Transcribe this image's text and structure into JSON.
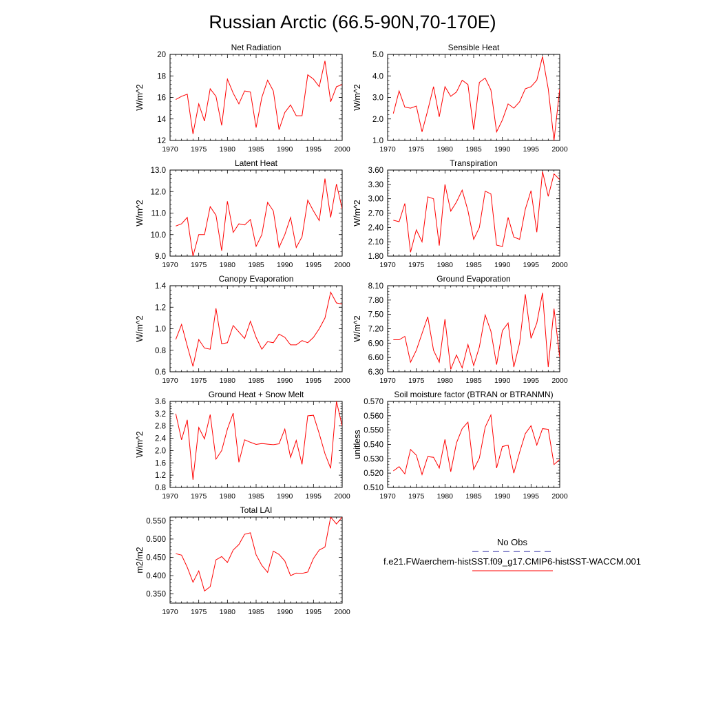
{
  "title": "Russian Arctic (66.5-90N,70-170E)",
  "legend": {
    "obs_label": "No Obs",
    "obs_color": "#1f1f9f",
    "case_label": "f.e21.FWaerchem-histSST.f09_g17.CMIP6-histSST-WACCM.001",
    "case_color": "#ff0000"
  },
  "chart_data": [
    {
      "type": "line",
      "title": "Net Radiation",
      "ylabel": "W/m^2",
      "xlim": [
        1970,
        2000
      ],
      "ylim": [
        12,
        20
      ],
      "xticks": [
        1970,
        1975,
        1980,
        1985,
        1990,
        1995,
        2000
      ],
      "yticks": [
        "12",
        "14",
        "16",
        "18",
        "20"
      ],
      "x": [
        1971,
        1972,
        1973,
        1974,
        1975,
        1976,
        1977,
        1978,
        1979,
        1980,
        1981,
        1982,
        1983,
        1984,
        1985,
        1986,
        1987,
        1988,
        1989,
        1990,
        1991,
        1992,
        1993,
        1994,
        1995,
        1996,
        1997,
        1998,
        1999,
        2000
      ],
      "series": [
        {
          "values": [
            15.8,
            16.1,
            16.3,
            12.6,
            15.4,
            13.8,
            16.8,
            16.1,
            13.4,
            17.7,
            16.4,
            15.4,
            16.6,
            16.5,
            13.2,
            16.0,
            17.6,
            16.6,
            13.0,
            14.6,
            15.3,
            14.3,
            14.3,
            18.1,
            17.7,
            17.0,
            19.4,
            15.6,
            17.0,
            17.2
          ]
        }
      ]
    },
    {
      "type": "line",
      "title": "Sensible Heat",
      "ylabel": "W/m^2",
      "xlim": [
        1970,
        2000
      ],
      "ylim": [
        1.0,
        5.0
      ],
      "xticks": [
        1970,
        1975,
        1980,
        1985,
        1990,
        1995,
        2000
      ],
      "yticks": [
        "1.0",
        "2.0",
        "3.0",
        "4.0",
        "5.0"
      ],
      "x": [
        1971,
        1972,
        1973,
        1974,
        1975,
        1976,
        1977,
        1978,
        1979,
        1980,
        1981,
        1982,
        1983,
        1984,
        1985,
        1986,
        1987,
        1988,
        1989,
        1990,
        1991,
        1992,
        1993,
        1994,
        1995,
        1996,
        1997,
        1998,
        1999,
        2000
      ],
      "series": [
        {
          "values": [
            2.25,
            3.3,
            2.55,
            2.5,
            2.6,
            1.4,
            2.4,
            3.5,
            2.1,
            3.5,
            3.05,
            3.25,
            3.8,
            3.6,
            1.5,
            3.7,
            3.9,
            3.35,
            1.4,
            1.95,
            2.7,
            2.5,
            2.8,
            3.4,
            3.5,
            3.8,
            4.9,
            3.4,
            1.0,
            3.4
          ]
        }
      ]
    },
    {
      "type": "line",
      "title": "Latent Heat",
      "ylabel": "W/m^2",
      "xlim": [
        1970,
        2000
      ],
      "ylim": [
        9.0,
        13.0
      ],
      "xticks": [
        1970,
        1975,
        1980,
        1985,
        1990,
        1995,
        2000
      ],
      "yticks": [
        "9.0",
        "10.0",
        "11.0",
        "12.0",
        "13.0"
      ],
      "x": [
        1971,
        1972,
        1973,
        1974,
        1975,
        1976,
        1977,
        1978,
        1979,
        1980,
        1981,
        1982,
        1983,
        1984,
        1985,
        1986,
        1987,
        1988,
        1989,
        1990,
        1991,
        1992,
        1993,
        1994,
        1995,
        1996,
        1997,
        1998,
        1999,
        2000
      ],
      "series": [
        {
          "values": [
            10.4,
            10.5,
            10.8,
            9.0,
            10.0,
            10.0,
            11.3,
            10.9,
            9.25,
            11.55,
            10.1,
            10.5,
            10.45,
            10.7,
            9.45,
            10.0,
            11.5,
            11.1,
            9.4,
            10.0,
            10.8,
            9.4,
            9.9,
            11.6,
            11.1,
            10.65,
            12.6,
            10.8,
            12.35,
            11.2
          ]
        }
      ]
    },
    {
      "type": "line",
      "title": "Transpiration",
      "ylabel": "W/m^2",
      "xlim": [
        1970,
        2000
      ],
      "ylim": [
        1.8,
        3.6
      ],
      "xticks": [
        1970,
        1975,
        1980,
        1985,
        1990,
        1995,
        2000
      ],
      "yticks": [
        "1.80",
        "2.10",
        "2.40",
        "2.70",
        "3.00",
        "3.30",
        "3.60"
      ],
      "x": [
        1971,
        1972,
        1973,
        1974,
        1975,
        1976,
        1977,
        1978,
        1979,
        1980,
        1981,
        1982,
        1983,
        1984,
        1985,
        1986,
        1987,
        1988,
        1989,
        1990,
        1991,
        1992,
        1993,
        1994,
        1995,
        1996,
        1997,
        1998,
        1999,
        2000
      ],
      "series": [
        {
          "values": [
            2.55,
            2.52,
            2.9,
            1.88,
            2.35,
            2.1,
            3.04,
            3.0,
            2.02,
            3.3,
            2.74,
            2.93,
            3.18,
            2.75,
            2.15,
            2.4,
            3.16,
            3.1,
            2.03,
            2.0,
            2.61,
            2.2,
            2.15,
            2.78,
            3.17,
            2.3,
            3.57,
            3.05,
            3.52,
            3.4
          ]
        }
      ]
    },
    {
      "type": "line",
      "title": "Canopy Evaporation",
      "ylabel": "W/m^2",
      "xlim": [
        1970,
        2000
      ],
      "ylim": [
        0.6,
        1.4
      ],
      "xticks": [
        1970,
        1975,
        1980,
        1985,
        1990,
        1995,
        2000
      ],
      "yticks": [
        "0.6",
        "0.8",
        "1.0",
        "1.2",
        "1.4"
      ],
      "x": [
        1971,
        1972,
        1973,
        1974,
        1975,
        1976,
        1977,
        1978,
        1979,
        1980,
        1981,
        1982,
        1983,
        1984,
        1985,
        1986,
        1987,
        1988,
        1989,
        1990,
        1991,
        1992,
        1993,
        1994,
        1995,
        1996,
        1997,
        1998,
        1999,
        2000
      ],
      "series": [
        {
          "values": [
            0.9,
            1.04,
            0.84,
            0.65,
            0.9,
            0.82,
            0.81,
            1.19,
            0.86,
            0.87,
            1.03,
            0.97,
            0.91,
            1.07,
            0.92,
            0.81,
            0.88,
            0.87,
            0.95,
            0.92,
            0.85,
            0.85,
            0.89,
            0.87,
            0.92,
            1.0,
            1.1,
            1.34,
            1.24,
            1.23
          ]
        }
      ]
    },
    {
      "type": "line",
      "title": "Ground Evaporation",
      "ylabel": "W/m^2",
      "xlim": [
        1970,
        2000
      ],
      "ylim": [
        6.3,
        8.1
      ],
      "xticks": [
        1970,
        1975,
        1980,
        1985,
        1990,
        1995,
        2000
      ],
      "yticks": [
        "6.30",
        "6.60",
        "6.90",
        "7.20",
        "7.50",
        "7.80",
        "8.10"
      ],
      "x": [
        1971,
        1972,
        1973,
        1974,
        1975,
        1976,
        1977,
        1978,
        1979,
        1980,
        1981,
        1982,
        1983,
        1984,
        1985,
        1986,
        1987,
        1988,
        1989,
        1990,
        1991,
        1992,
        1993,
        1994,
        1995,
        1996,
        1997,
        1998,
        1999,
        2000
      ],
      "series": [
        {
          "values": [
            6.97,
            6.97,
            7.04,
            6.5,
            6.75,
            7.1,
            7.45,
            6.75,
            6.5,
            7.4,
            6.35,
            6.65,
            6.38,
            6.87,
            6.43,
            6.82,
            7.49,
            7.15,
            6.45,
            7.16,
            7.32,
            6.4,
            6.9,
            7.92,
            7.0,
            7.32,
            7.95,
            6.4,
            7.62,
            6.6
          ]
        }
      ]
    },
    {
      "type": "line",
      "title": "Ground Heat + Snow Melt",
      "ylabel": "W/m^2",
      "xlim": [
        1970,
        2000
      ],
      "ylim": [
        0.8,
        3.6
      ],
      "xticks": [
        1970,
        1975,
        1980,
        1985,
        1990,
        1995,
        2000
      ],
      "yticks": [
        "0.8",
        "1.2",
        "1.6",
        "2.0",
        "2.4",
        "2.8",
        "3.2",
        "3.6"
      ],
      "x": [
        1971,
        1972,
        1973,
        1974,
        1975,
        1976,
        1977,
        1978,
        1979,
        1980,
        1981,
        1982,
        1983,
        1984,
        1985,
        1986,
        1987,
        1988,
        1989,
        1990,
        1991,
        1992,
        1993,
        1994,
        1995,
        1996,
        1997,
        1998,
        1999,
        2000
      ],
      "series": [
        {
          "values": [
            3.2,
            2.35,
            3.0,
            1.05,
            2.75,
            2.38,
            3.17,
            1.72,
            2.0,
            2.7,
            3.22,
            1.62,
            2.35,
            2.27,
            2.2,
            2.23,
            2.21,
            2.19,
            2.22,
            2.7,
            1.78,
            2.33,
            1.55,
            3.13,
            3.15,
            2.55,
            1.9,
            1.42,
            3.6,
            2.8
          ]
        }
      ]
    },
    {
      "type": "line",
      "title": "Soil moisture factor (BTRAN or BTRANMN)",
      "ylabel": "unitless",
      "xlim": [
        1970,
        2000
      ],
      "ylim": [
        0.51,
        0.57
      ],
      "xticks": [
        1970,
        1975,
        1980,
        1985,
        1990,
        1995,
        2000
      ],
      "yticks": [
        "0.510",
        "0.520",
        "0.530",
        "0.540",
        "0.550",
        "0.560",
        "0.570"
      ],
      "x": [
        1971,
        1972,
        1973,
        1974,
        1975,
        1976,
        1977,
        1978,
        1979,
        1980,
        1981,
        1982,
        1983,
        1984,
        1985,
        1986,
        1987,
        1988,
        1989,
        1990,
        1991,
        1992,
        1993,
        1994,
        1995,
        1996,
        1997,
        1998,
        1999,
        2000
      ],
      "series": [
        {
          "values": [
            0.5215,
            0.5245,
            0.5195,
            0.5365,
            0.5325,
            0.519,
            0.5315,
            0.531,
            0.5235,
            0.5435,
            0.521,
            0.541,
            0.551,
            0.5555,
            0.5225,
            0.5305,
            0.552,
            0.5605,
            0.5235,
            0.5385,
            0.5395,
            0.52,
            0.5345,
            0.5475,
            0.553,
            0.5395,
            0.551,
            0.5505,
            0.526,
            0.5295
          ]
        }
      ]
    },
    {
      "type": "line",
      "title": "Total LAI",
      "ylabel": "m2/m2",
      "xlim": [
        1970,
        2000
      ],
      "ylim": [
        0.325,
        0.56
      ],
      "xticks": [
        1970,
        1975,
        1980,
        1985,
        1990,
        1995,
        2000
      ],
      "yticks": [
        "0.350",
        "0.400",
        "0.450",
        "0.500",
        "0.550"
      ],
      "x": [
        1971,
        1972,
        1973,
        1974,
        1975,
        1976,
        1977,
        1978,
        1979,
        1980,
        1981,
        1982,
        1983,
        1984,
        1985,
        1986,
        1987,
        1988,
        1989,
        1990,
        1991,
        1992,
        1993,
        1994,
        1995,
        1996,
        1997,
        1998,
        1999,
        2000
      ],
      "series": [
        {
          "values": [
            0.46,
            0.456,
            0.423,
            0.382,
            0.413,
            0.358,
            0.37,
            0.443,
            0.452,
            0.436,
            0.47,
            0.485,
            0.513,
            0.517,
            0.457,
            0.428,
            0.409,
            0.467,
            0.458,
            0.44,
            0.4,
            0.407,
            0.406,
            0.41,
            0.447,
            0.47,
            0.478,
            0.56,
            0.541,
            0.56
          ]
        }
      ]
    }
  ]
}
